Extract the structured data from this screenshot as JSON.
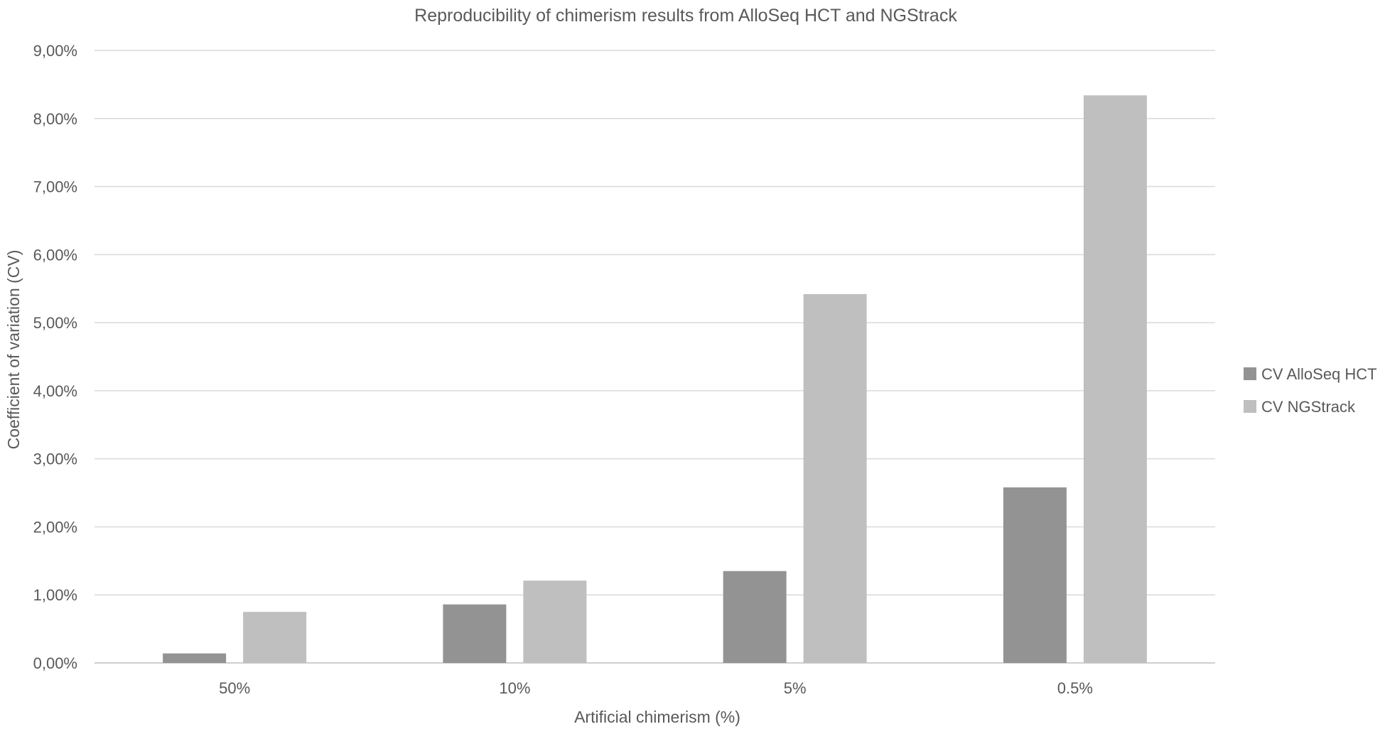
{
  "chart_data": {
    "type": "bar",
    "title": "Reproducibility of chimerism results from AlloSeq HCT and NGStrack",
    "xlabel": "Artificial chimerism (%)",
    "ylabel": "Coefficient of variation (CV)",
    "categories": [
      "50%",
      "10%",
      "5%",
      "0.5%"
    ],
    "series": [
      {
        "name": "CV AlloSeq HCT",
        "color": "#939393",
        "values": [
          0.14,
          0.86,
          1.35,
          2.58
        ]
      },
      {
        "name": "CV NGStrack",
        "color": "#bfbfbf",
        "values": [
          0.75,
          1.21,
          5.42,
          8.34
        ]
      }
    ],
    "ylim": [
      0,
      9
    ],
    "ytick_values": [
      0,
      1,
      2,
      3,
      4,
      5,
      6,
      7,
      8,
      9
    ],
    "ytick_labels": [
      "0,00%",
      "1,00%",
      "2,00%",
      "3,00%",
      "4,00%",
      "5,00%",
      "6,00%",
      "7,00%",
      "8,00%",
      "9,00%"
    ],
    "grid": true,
    "legend_position": "right"
  }
}
